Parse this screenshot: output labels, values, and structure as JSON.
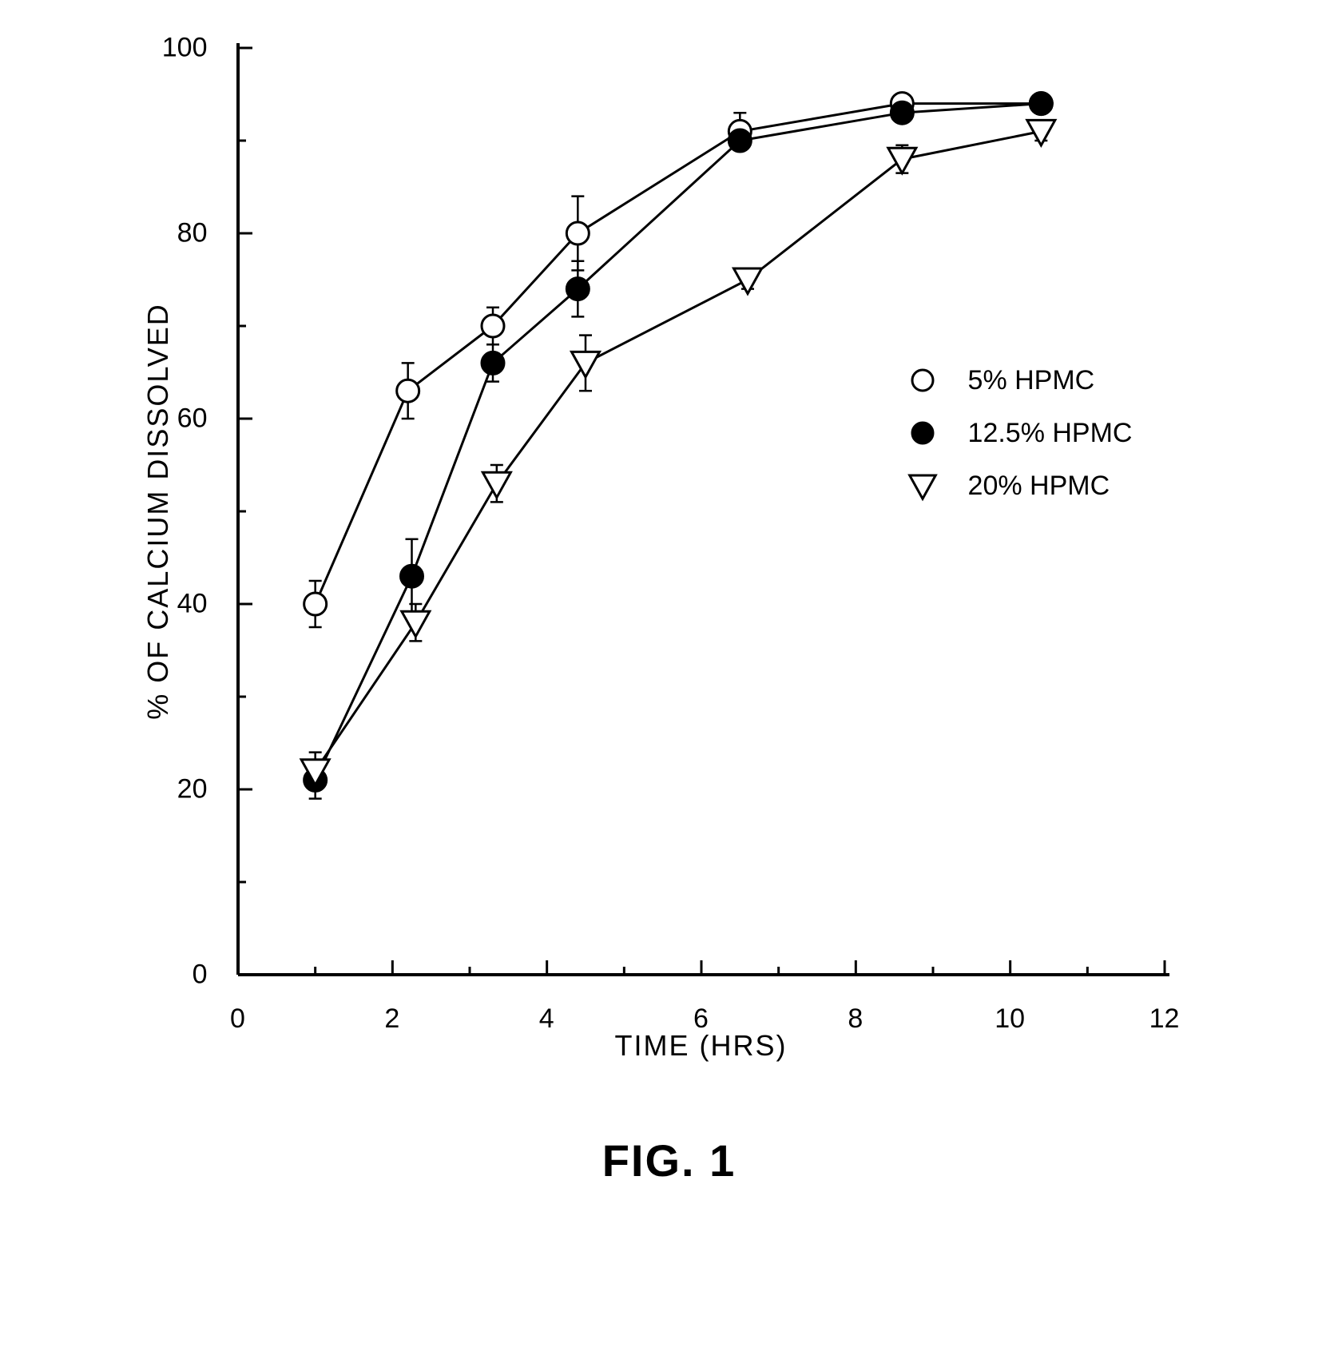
{
  "chart": {
    "type": "line-scatter-errorbar",
    "ylabel": "% OF CALCIUM DISSOLVED",
    "xlabel": "TIME (HRS)",
    "caption": "FIG. 1",
    "xlim": [
      0,
      12
    ],
    "ylim": [
      0,
      100
    ],
    "xticks": [
      0,
      2,
      4,
      6,
      8,
      10,
      12
    ],
    "yticks": [
      0,
      20,
      40,
      60,
      80,
      100
    ],
    "axis_color": "#000000",
    "background_color": "#ffffff",
    "line_width": 3,
    "marker_size": 14,
    "error_cap_width": 16,
    "tick_fontsize": 34,
    "label_fontsize": 36,
    "caption_fontsize": 56,
    "series": [
      {
        "name": "5% HPMC",
        "marker": "open-circle",
        "stroke": "#000000",
        "fill": "#ffffff",
        "x": [
          1.0,
          2.2,
          3.3,
          4.4,
          6.5,
          8.6,
          10.4
        ],
        "y": [
          40,
          63,
          70,
          80,
          91,
          94,
          94
        ],
        "err": [
          2.5,
          3.0,
          2.0,
          4.0,
          2.0,
          1.0,
          1.0
        ]
      },
      {
        "name": "12.5% HPMC",
        "marker": "filled-circle",
        "stroke": "#000000",
        "fill": "#000000",
        "x": [
          1.0,
          2.25,
          3.3,
          4.4,
          6.5,
          8.6,
          10.4
        ],
        "y": [
          21,
          43,
          66,
          74,
          90,
          93,
          94
        ],
        "err": [
          2.0,
          4.0,
          2.0,
          3.0,
          1.0,
          1.0,
          1.0
        ]
      },
      {
        "name": "20% HPMC",
        "marker": "open-triangle-down",
        "stroke": "#000000",
        "fill": "#ffffff",
        "x": [
          1.0,
          2.3,
          3.35,
          4.5,
          6.6,
          8.6,
          10.4
        ],
        "y": [
          22,
          38,
          53,
          66,
          75,
          88,
          91
        ],
        "err": [
          2.0,
          2.0,
          2.0,
          3.0,
          1.0,
          1.5,
          1.0
        ]
      }
    ],
    "legend": {
      "items": [
        {
          "label": "5% HPMC",
          "marker": "open-circle"
        },
        {
          "label": "12.5% HPMC",
          "marker": "filled-circle"
        },
        {
          "label": "20% HPMC",
          "marker": "open-triangle-down"
        }
      ]
    }
  }
}
